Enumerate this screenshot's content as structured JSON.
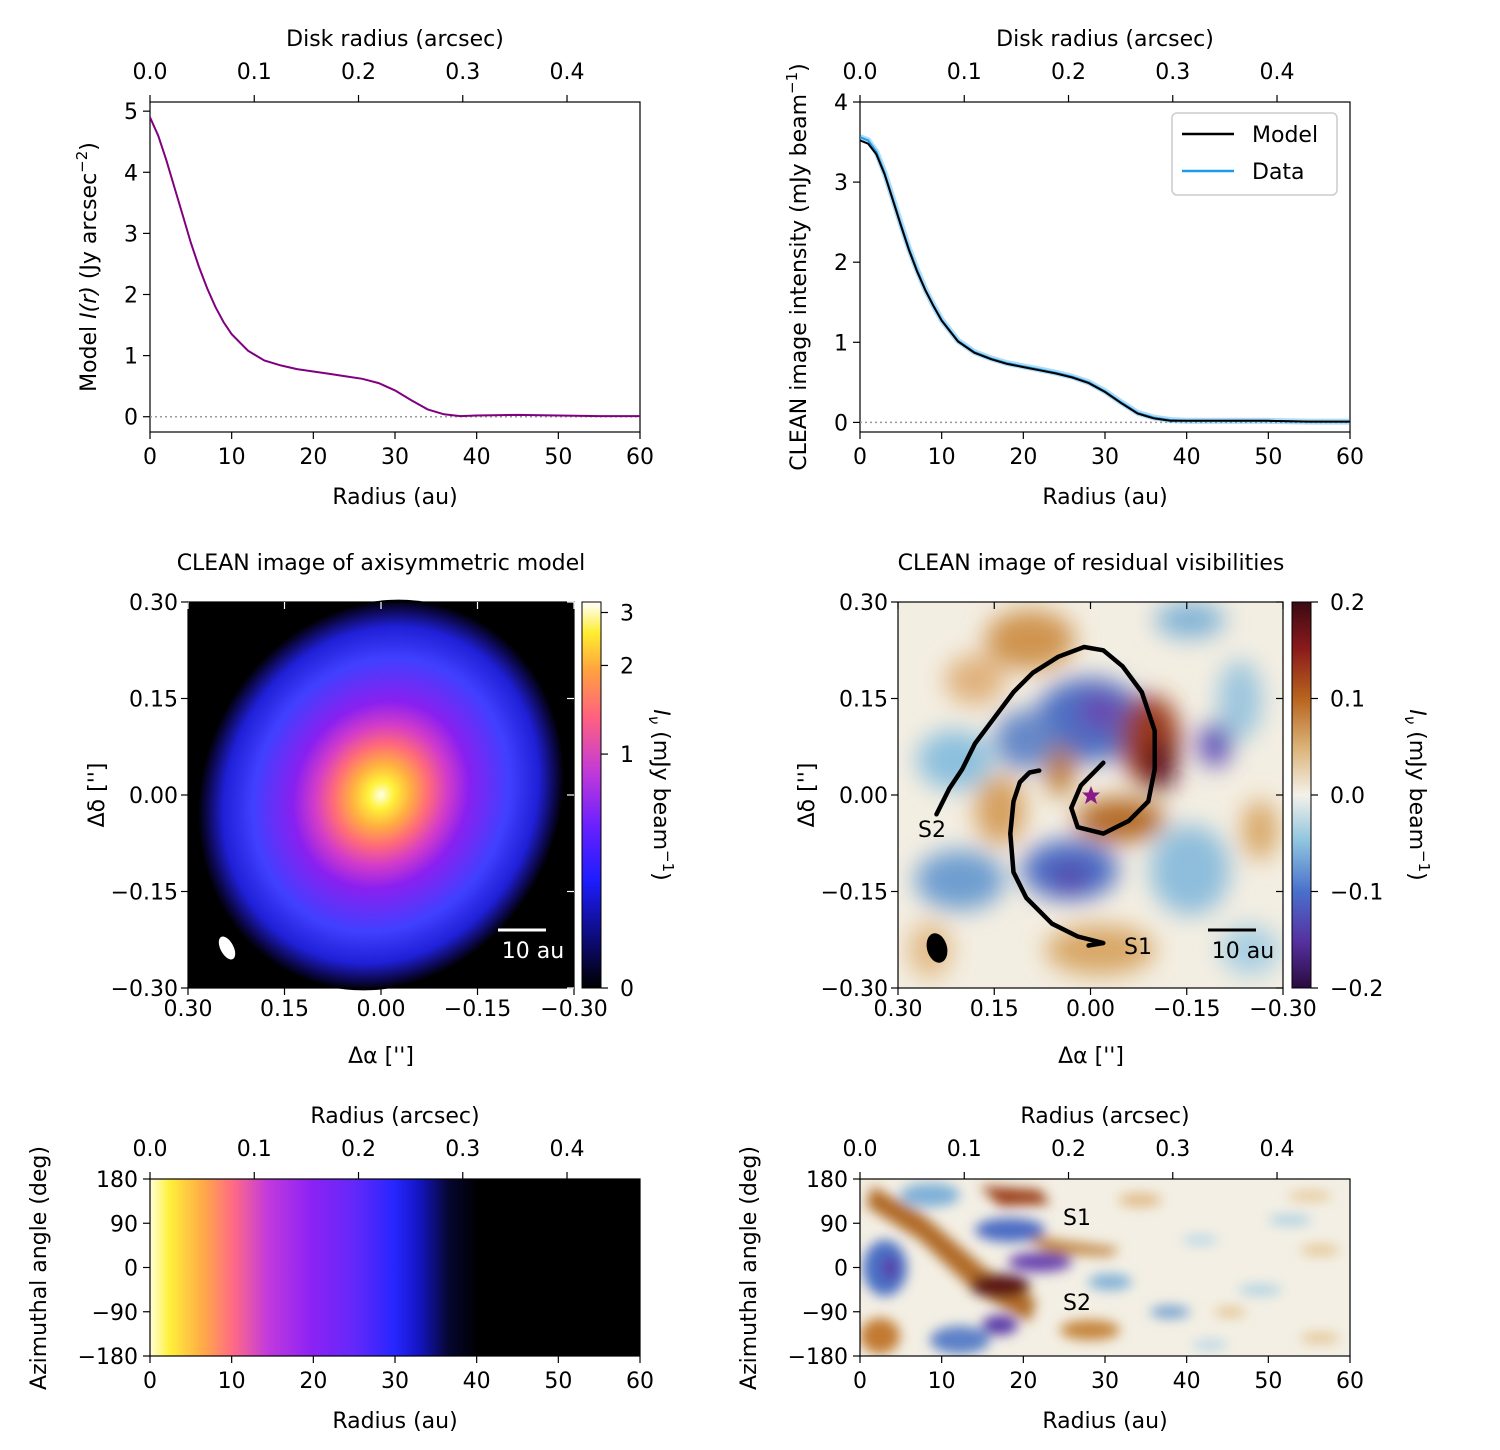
{
  "chart_data": [
    {
      "id": "model_profile",
      "type": "line",
      "top_xlabel": "Disk radius (arcsec)",
      "top_ticks": [
        "0.0",
        "0.1",
        "0.2",
        "0.3",
        "0.4"
      ],
      "top_tick_values": [
        0.0,
        0.1,
        0.2,
        0.3,
        0.4
      ],
      "xlabel": "Radius (au)",
      "ylabel_prefix": "Model ",
      "ylabel_var": "I(r)",
      "ylabel_units": " (Jy arcsec",
      "ylabel_exp": "−2",
      "ylabel_close": ")",
      "xlim": [
        0,
        60
      ],
      "ylim": [
        -0.25,
        5.15
      ],
      "xticks": [
        0,
        10,
        20,
        30,
        40,
        50,
        60
      ],
      "yticks": [
        0,
        1,
        2,
        3,
        4,
        5
      ],
      "zero_line": true,
      "series": [
        {
          "name": "Model I(r)",
          "color": "#800080",
          "x": [
            0,
            1,
            2,
            3,
            4,
            5,
            6,
            7,
            8,
            9,
            10,
            12,
            14,
            16,
            18,
            20,
            22,
            24,
            26,
            28,
            30,
            32,
            34,
            36,
            38,
            40,
            45,
            50,
            55,
            60
          ],
          "y": [
            4.9,
            4.6,
            4.2,
            3.75,
            3.3,
            2.85,
            2.45,
            2.1,
            1.8,
            1.55,
            1.35,
            1.08,
            0.92,
            0.84,
            0.78,
            0.74,
            0.7,
            0.66,
            0.62,
            0.55,
            0.43,
            0.27,
            0.12,
            0.04,
            0.01,
            0.02,
            0.03,
            0.02,
            0.01,
            0.01
          ]
        }
      ]
    },
    {
      "id": "clean_profile",
      "type": "line",
      "top_xlabel": "Disk radius (arcsec)",
      "top_ticks": [
        "0.0",
        "0.1",
        "0.2",
        "0.3",
        "0.4"
      ],
      "top_tick_values": [
        0.0,
        0.1,
        0.2,
        0.3,
        0.4
      ],
      "xlabel": "Radius (au)",
      "ylabel_prefix": "CLEAN image intensity (mJy beam",
      "ylabel_exp": "−1",
      "ylabel_close": ")",
      "xlim": [
        0,
        60
      ],
      "ylim": [
        -0.12,
        4.0
      ],
      "xticks": [
        0,
        10,
        20,
        30,
        40,
        50,
        60
      ],
      "yticks": [
        0,
        1,
        2,
        3,
        4
      ],
      "zero_line": true,
      "legend": {
        "position": "top-right",
        "entries": [
          "Model",
          "Data"
        ]
      },
      "series": [
        {
          "name": "Data",
          "color": "#1e9be8",
          "x": [
            0,
            1,
            2,
            3,
            4,
            5,
            6,
            7,
            8,
            9,
            10,
            12,
            14,
            16,
            18,
            20,
            22,
            24,
            26,
            28,
            30,
            32,
            34,
            36,
            38,
            40,
            45,
            50,
            55,
            60
          ],
          "y": [
            3.56,
            3.52,
            3.38,
            3.12,
            2.8,
            2.48,
            2.17,
            1.9,
            1.66,
            1.46,
            1.28,
            1.02,
            0.88,
            0.8,
            0.74,
            0.7,
            0.66,
            0.62,
            0.57,
            0.5,
            0.39,
            0.25,
            0.12,
            0.06,
            0.03,
            0.02,
            0.02,
            0.02,
            0.01,
            0.01
          ]
        },
        {
          "name": "Model",
          "color": "#000000",
          "x": [
            0,
            1,
            2,
            3,
            4,
            5,
            6,
            7,
            8,
            9,
            10,
            12,
            14,
            16,
            18,
            20,
            22,
            24,
            26,
            28,
            30,
            32,
            34,
            36,
            38,
            40,
            45,
            50,
            55,
            60
          ],
          "y": [
            3.52,
            3.48,
            3.35,
            3.1,
            2.78,
            2.46,
            2.15,
            1.88,
            1.65,
            1.45,
            1.27,
            1.01,
            0.87,
            0.79,
            0.73,
            0.69,
            0.65,
            0.61,
            0.56,
            0.49,
            0.38,
            0.24,
            0.11,
            0.05,
            0.02,
            0.02,
            0.02,
            0.02,
            0.01,
            0.01
          ]
        }
      ]
    },
    {
      "id": "clean_model_image",
      "type": "heatmap",
      "title": "CLEAN image of axisymmetric model",
      "xlabel": "Δα ['']",
      "ylabel": "Δδ ['']",
      "xticks": [
        "0.30",
        "0.15",
        "0.00",
        "−0.15",
        "−0.30"
      ],
      "yticks": [
        "0.30",
        "0.15",
        "0.00",
        "−0.15",
        "−0.30"
      ],
      "tick_values": [
        0.3,
        0.15,
        0.0,
        -0.15,
        -0.3
      ],
      "xlim": [
        0.3,
        -0.3
      ],
      "ylim": [
        -0.3,
        0.3
      ],
      "colormap": "gnuplot2",
      "colorbar_label_var": "I",
      "colorbar_label_sub": "ν",
      "colorbar_label_units": " (mJy beam",
      "colorbar_label_exp": "−1",
      "colorbar_label_close": ")",
      "colorbar_ticks": [
        "0",
        "1",
        "2",
        "3"
      ],
      "colorbar_tick_values": [
        0,
        1,
        2,
        3
      ],
      "colorbar_range": [
        0,
        3.25
      ],
      "colorbar_scale": "asinh",
      "scale_bar": "10 au",
      "beam": "white ellipse"
    },
    {
      "id": "clean_residual_image",
      "type": "heatmap",
      "title": "CLEAN image of residual visibilities",
      "xlabel": "Δα ['']",
      "ylabel": "Δδ ['']",
      "xticks": [
        "0.30",
        "0.15",
        "0.00",
        "−0.15",
        "−0.30"
      ],
      "yticks": [
        "0.30",
        "0.15",
        "0.00",
        "−0.15",
        "−0.30"
      ],
      "tick_values": [
        0.3,
        0.15,
        0.0,
        -0.15,
        -0.3
      ],
      "xlim": [
        0.3,
        -0.3
      ],
      "ylim": [
        -0.3,
        0.3
      ],
      "colormap": "diverging brown-white-blue",
      "colorbar_label_var": "I",
      "colorbar_label_sub": "ν",
      "colorbar_label_units": " (mJy beam",
      "colorbar_label_exp": "−1",
      "colorbar_label_close": ")",
      "colorbar_ticks": [
        "0.2",
        "0.1",
        "0.0",
        "−0.1",
        "−0.2"
      ],
      "colorbar_tick_values": [
        0.2,
        0.1,
        0.0,
        -0.1,
        -0.2
      ],
      "colorbar_range": [
        -0.2,
        0.2
      ],
      "annotations": [
        "S1",
        "S2"
      ],
      "scale_bar": "10 au",
      "beam": "black ellipse",
      "star_marker": "purple star at (0, 0)",
      "spirals": [
        {
          "name": "S1",
          "points": [
            [
              0.003,
              -0.234
            ],
            [
              -0.02,
              -0.23
            ],
            [
              0.02,
              -0.22
            ],
            [
              0.06,
              -0.2
            ],
            [
              0.1,
              -0.16
            ],
            [
              0.12,
              -0.12
            ],
            [
              0.125,
              -0.06
            ],
            [
              0.12,
              -0.01
            ],
            [
              0.11,
              0.02
            ],
            [
              0.095,
              0.035
            ],
            [
              0.08,
              0.038
            ]
          ]
        },
        {
          "name": "S2",
          "points": [
            [
              0.24,
              -0.03
            ],
            [
              0.22,
              0.01
            ],
            [
              0.2,
              0.04
            ],
            [
              0.18,
              0.08
            ],
            [
              0.15,
              0.12
            ],
            [
              0.12,
              0.16
            ],
            [
              0.09,
              0.19
            ],
            [
              0.05,
              0.215
            ],
            [
              0.01,
              0.23
            ],
            [
              -0.02,
              0.225
            ],
            [
              -0.05,
              0.2
            ],
            [
              -0.08,
              0.16
            ],
            [
              -0.1,
              0.1
            ],
            [
              -0.1,
              0.04
            ],
            [
              -0.09,
              -0.01
            ],
            [
              -0.06,
              -0.04
            ],
            [
              -0.02,
              -0.06
            ],
            [
              0.02,
              -0.05
            ],
            [
              0.03,
              -0.02
            ],
            [
              0.015,
              0.015
            ],
            [
              -0.01,
              0.04
            ],
            [
              -0.02,
              0.05
            ]
          ]
        }
      ]
    },
    {
      "id": "model_polar_map",
      "type": "heatmap",
      "top_xlabel": "Radius (arcsec)",
      "top_ticks": [
        "0.0",
        "0.1",
        "0.2",
        "0.3",
        "0.4"
      ],
      "top_tick_values": [
        0.0,
        0.1,
        0.2,
        0.3,
        0.4
      ],
      "xlabel": "Radius (au)",
      "ylabel": "Azimuthal angle (deg)",
      "xticks": [
        0,
        10,
        20,
        30,
        40,
        50,
        60
      ],
      "yticks": [
        "180",
        "90",
        "0",
        "−90",
        "−180"
      ],
      "ytick_values": [
        180,
        90,
        0,
        -90,
        -180
      ],
      "xlim": [
        0,
        60
      ],
      "ylim": [
        -180,
        180
      ],
      "colormap": "gnuplot2"
    },
    {
      "id": "residual_polar_map",
      "type": "heatmap",
      "top_xlabel": "Radius (arcsec)",
      "top_ticks": [
        "0.0",
        "0.1",
        "0.2",
        "0.3",
        "0.4"
      ],
      "top_tick_values": [
        0.0,
        0.1,
        0.2,
        0.3,
        0.4
      ],
      "xlabel": "Radius (au)",
      "ylabel": "Azimuthal angle (deg)",
      "xticks": [
        0,
        10,
        20,
        30,
        40,
        50,
        60
      ],
      "yticks": [
        "180",
        "90",
        "0",
        "−90",
        "−180"
      ],
      "ytick_values": [
        180,
        90,
        0,
        -90,
        -180
      ],
      "xlim": [
        0,
        60
      ],
      "ylim": [
        -180,
        180
      ],
      "colormap": "diverging brown-white-blue",
      "annotations": [
        "S1",
        "S2"
      ]
    }
  ]
}
